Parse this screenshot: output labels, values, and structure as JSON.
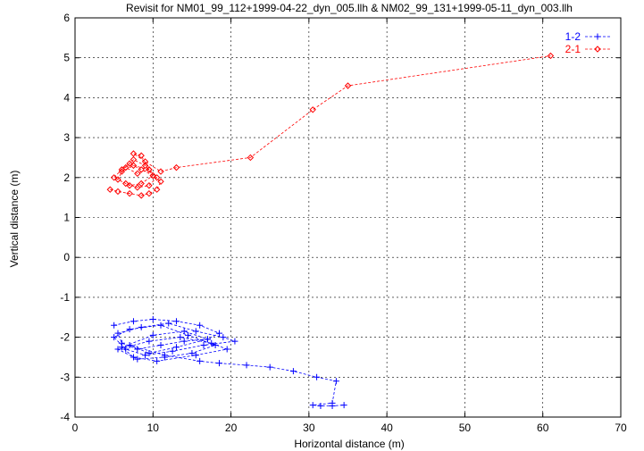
{
  "chart_data": {
    "type": "line",
    "title": "Revisit for NM01_99_112+1999-04-22_dyn_005.llh & NM02_99_131+1999-05-11_dyn_003.llh",
    "xlabel": "Horizontal distance (m)",
    "ylabel": "Vertical distance (m)",
    "xlim": [
      0,
      70
    ],
    "ylim": [
      -4,
      6
    ],
    "xticks": [
      "0",
      "10",
      "20",
      "30",
      "40",
      "50",
      "60",
      "70"
    ],
    "yticks": [
      "-4",
      "-3",
      "-2",
      "-1",
      "0",
      "1",
      "2",
      "3",
      "4",
      "5",
      "6"
    ],
    "grid": true,
    "legend_position": "top-right",
    "series": [
      {
        "name": "1-2",
        "color": "#0000ff",
        "marker": "plus",
        "x": [
          5.0,
          7.5,
          10.0,
          13.0,
          16.0,
          18.5,
          17.0,
          14.0,
          11.0,
          8.0,
          6.0,
          5.5,
          8.5,
          12.0,
          15.5,
          19.0,
          20.5,
          16.5,
          12.5,
          9.0,
          6.5,
          5.0,
          7.0,
          11.0,
          14.5,
          18.0,
          15.0,
          11.5,
          8.0,
          5.5,
          9.5,
          13.5,
          17.5,
          19.5,
          15.5,
          10.5,
          7.5,
          6.0,
          10.0,
          14.0,
          17.0,
          13.0,
          9.5,
          7.0,
          11.5,
          16.0,
          18.5,
          22.0,
          25.0,
          28.0,
          31.0,
          33.5,
          33.0,
          30.5,
          31.5,
          33.0,
          34.5
        ],
        "y": [
          -1.7,
          -1.6,
          -1.55,
          -1.6,
          -1.7,
          -1.9,
          -2.05,
          -2.1,
          -2.2,
          -2.3,
          -2.15,
          -1.9,
          -1.75,
          -1.65,
          -1.85,
          -2.0,
          -2.1,
          -2.2,
          -2.35,
          -2.45,
          -2.3,
          -2.0,
          -1.8,
          -1.7,
          -1.95,
          -2.2,
          -2.4,
          -2.5,
          -2.55,
          -2.3,
          -2.1,
          -2.0,
          -2.15,
          -2.3,
          -2.45,
          -2.6,
          -2.5,
          -2.25,
          -1.95,
          -1.85,
          -2.05,
          -2.25,
          -2.4,
          -2.2,
          -2.45,
          -2.6,
          -2.65,
          -2.7,
          -2.75,
          -2.85,
          -3.0,
          -3.1,
          -3.65,
          -3.7,
          -3.72,
          -3.72,
          -3.7
        ]
      },
      {
        "name": "2-1",
        "color": "#ff0000",
        "marker": "diamond",
        "x": [
          4.5,
          5.5,
          7.0,
          8.5,
          9.5,
          10.5,
          11.0,
          10.0,
          8.5,
          7.0,
          6.0,
          5.0,
          6.5,
          8.0,
          9.5,
          10.5,
          9.5,
          7.5,
          6.0,
          5.5,
          7.0,
          8.5,
          10.0,
          9.0,
          7.5,
          6.5,
          8.0,
          9.5,
          8.5,
          7.5,
          9.0,
          11.0,
          13.0,
          22.5,
          30.5,
          35.0,
          61.0
        ],
        "y": [
          1.7,
          1.65,
          1.6,
          1.55,
          1.6,
          1.7,
          1.9,
          2.05,
          2.2,
          2.35,
          2.2,
          2.0,
          1.85,
          1.75,
          1.8,
          2.0,
          2.2,
          2.3,
          2.15,
          1.95,
          1.8,
          1.85,
          2.05,
          2.3,
          2.45,
          2.25,
          2.1,
          2.2,
          2.55,
          2.6,
          2.4,
          2.15,
          2.25,
          2.5,
          3.7,
          4.3,
          5.05
        ]
      }
    ]
  }
}
